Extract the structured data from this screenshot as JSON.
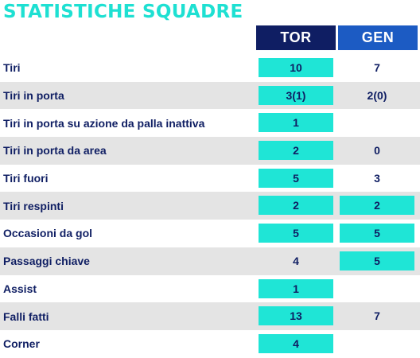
{
  "title": "STATISTICHE SQUADRE",
  "teams": {
    "home": "TOR",
    "away": "GEN"
  },
  "colors": {
    "title": "#1ee0d2",
    "home_header": "#0f1e63",
    "away_header": "#1c5bc3",
    "highlight": "#1fe5d6",
    "text": "#0f1e63",
    "alt_row": "#e4e4e4"
  },
  "rows": [
    {
      "label": "Tiri",
      "tor": "10",
      "gen": "7",
      "tor_hl": true,
      "gen_hl": false
    },
    {
      "label": "Tiri in porta",
      "tor": "3(1)",
      "gen": "2(0)",
      "tor_hl": true,
      "gen_hl": false
    },
    {
      "label": "Tiri in porta su azione da palla inattiva",
      "tor": "1",
      "gen": "",
      "tor_hl": true,
      "gen_hl": false
    },
    {
      "label": "Tiri in porta da area",
      "tor": "2",
      "gen": "0",
      "tor_hl": true,
      "gen_hl": false
    },
    {
      "label": "Tiri fuori",
      "tor": "5",
      "gen": "3",
      "tor_hl": true,
      "gen_hl": false
    },
    {
      "label": "Tiri respinti",
      "tor": "2",
      "gen": "2",
      "tor_hl": true,
      "gen_hl": true
    },
    {
      "label": "Occasioni da gol",
      "tor": "5",
      "gen": "5",
      "tor_hl": true,
      "gen_hl": true
    },
    {
      "label": "Passaggi chiave",
      "tor": "4",
      "gen": "5",
      "tor_hl": false,
      "gen_hl": true
    },
    {
      "label": "Assist",
      "tor": "1",
      "gen": "",
      "tor_hl": true,
      "gen_hl": false
    },
    {
      "label": "Falli fatti",
      "tor": "13",
      "gen": "7",
      "tor_hl": true,
      "gen_hl": false
    },
    {
      "label": "Corner",
      "tor": "4",
      "gen": "",
      "tor_hl": true,
      "gen_hl": false
    }
  ]
}
